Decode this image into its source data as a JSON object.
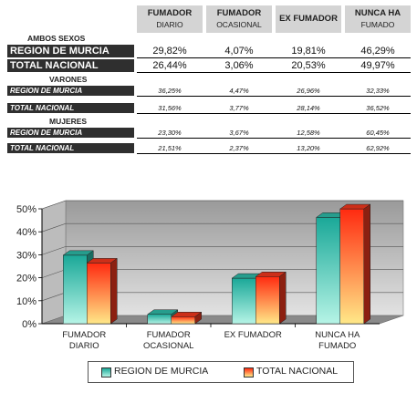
{
  "table": {
    "headers": [
      {
        "line1": "FUMADOR",
        "line2": "DIARIO"
      },
      {
        "line1": "FUMADOR",
        "line2": "OCASIONAL"
      },
      {
        "line1": "EX FUMADOR",
        "line2": ""
      },
      {
        "line1": "NUNCA HA",
        "line2": "FUMADO"
      }
    ],
    "sections": [
      {
        "title": "AMBOS SEXOS",
        "rows": [
          {
            "label": "REGION DE MURCIA",
            "values": [
              "29,82%",
              "4,07%",
              "19,81%",
              "46,29%"
            ]
          },
          {
            "label": "TOTAL NACIONAL",
            "values": [
              "26,44%",
              "3,06%",
              "20,53%",
              "49,97%"
            ]
          }
        ]
      },
      {
        "title": "VARONES",
        "rows": [
          {
            "label": "REGION DE MURCIA",
            "values": [
              "36,25%",
              "4,47%",
              "26,96%",
              "32,33%"
            ]
          },
          {
            "label": "TOTAL NACIONAL",
            "values": [
              "31,56%",
              "3,77%",
              "28,14%",
              "36,52%"
            ]
          }
        ]
      },
      {
        "title": "MUJERES",
        "rows": [
          {
            "label": "REGION DE MURCIA",
            "values": [
              "23,30%",
              "3,67%",
              "12,58%",
              "60,45%"
            ]
          },
          {
            "label": "TOTAL NACIONAL",
            "values": [
              "21,51%",
              "2,37%",
              "13,20%",
              "62,92%"
            ]
          }
        ]
      }
    ]
  },
  "chart_data": {
    "type": "bar",
    "categories": [
      [
        "FUMADOR",
        "DIARIO"
      ],
      [
        "FUMADOR",
        "OCASIONAL"
      ],
      [
        "EX FUMADOR"
      ],
      [
        "NUNCA HA",
        "FUMADO"
      ]
    ],
    "series": [
      {
        "name": "REGION DE MURCIA",
        "values": [
          29.82,
          4.07,
          19.81,
          46.29
        ],
        "color": "#2fc4b0"
      },
      {
        "name": "TOTAL NACIONAL",
        "values": [
          26.44,
          3.06,
          20.53,
          49.97
        ],
        "color": "#ff3b1f"
      }
    ],
    "yticks": [
      "0%",
      "10%",
      "20%",
      "30%",
      "40%",
      "50%"
    ],
    "ylim": [
      0,
      50
    ],
    "grid": true,
    "legend": "bottom",
    "style": "3d"
  }
}
